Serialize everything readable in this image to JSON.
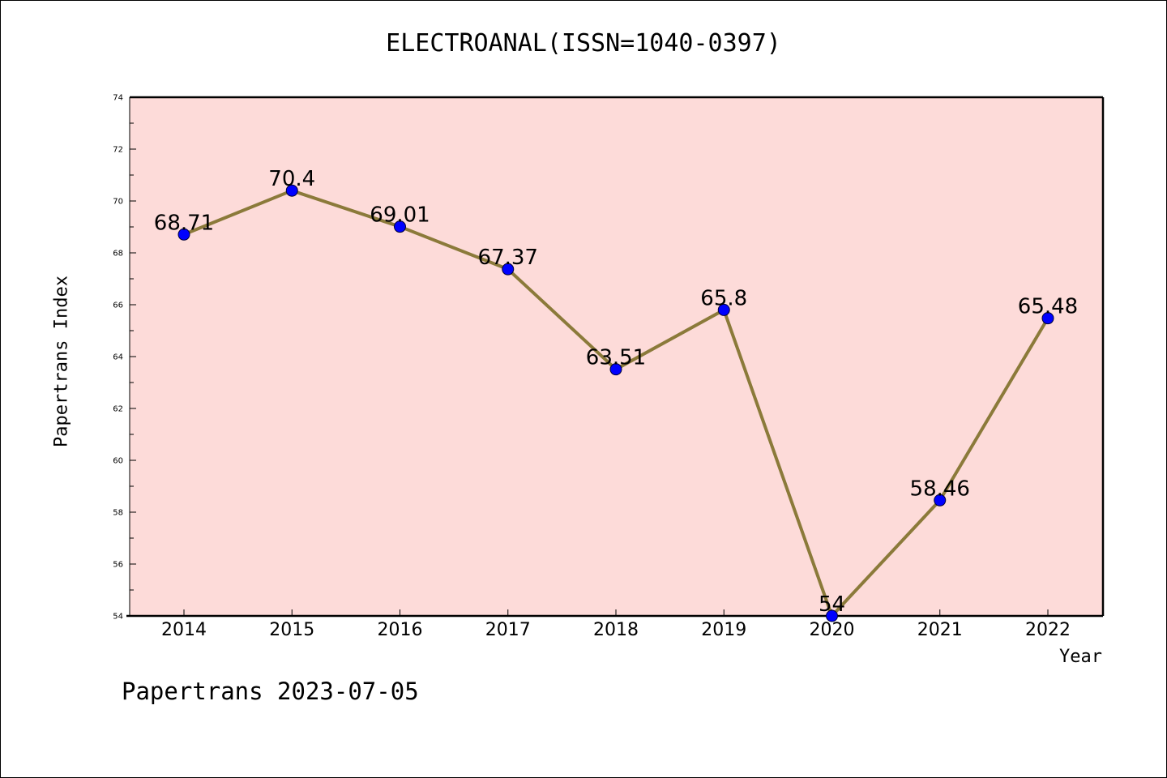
{
  "chart_data": {
    "type": "line",
    "title": "ELECTROANAL(ISSN=1040-0397)",
    "xlabel": "Year",
    "ylabel": "Papertrans Index",
    "categories": [
      "2014",
      "2015",
      "2016",
      "2017",
      "2018",
      "2019",
      "2020",
      "2021",
      "2022"
    ],
    "series": [
      {
        "values": [
          68.71,
          70.4,
          69.01,
          67.37,
          63.51,
          65.8,
          54,
          58.46,
          65.48
        ],
        "labels": [
          "68.71",
          "70.4",
          "69.01",
          "67.37",
          "63.51",
          "65.8",
          "54",
          "58.46",
          "65.48"
        ]
      }
    ],
    "ylim": [
      54,
      74
    ],
    "yticks": [
      "54",
      "56",
      "58",
      "60",
      "62",
      "64",
      "66",
      "68",
      "70",
      "72",
      "74"
    ],
    "grid": false,
    "colors": {
      "plot_background": "#fddbd9",
      "line": "#8b7a3a",
      "marker": "#0000ff"
    }
  },
  "footer": "Papertrans 2023-07-05"
}
